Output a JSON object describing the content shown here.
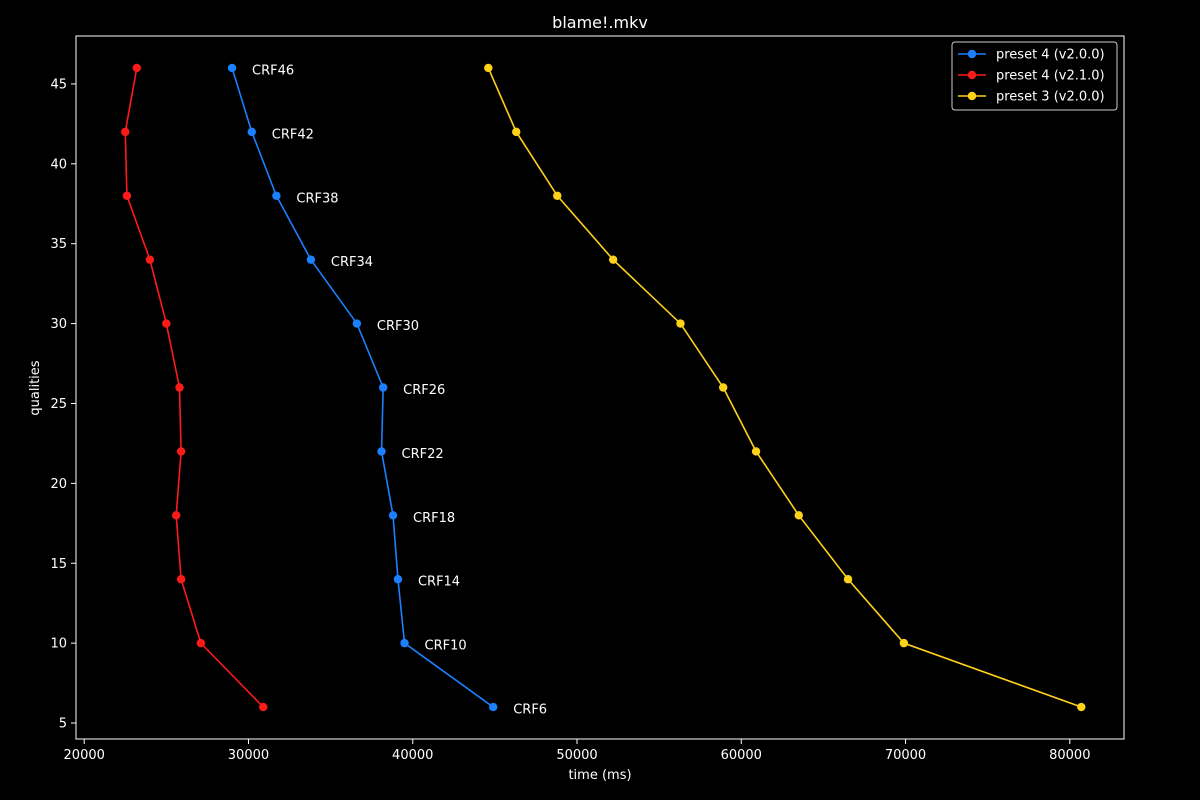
{
  "chart_data": {
    "type": "line",
    "title": "blame!.mkv",
    "xlabel": "time (ms)",
    "ylabel": "qualities",
    "xlim": [
      19500,
      83300
    ],
    "ylim": [
      4,
      48
    ],
    "xticks": [
      20000,
      30000,
      40000,
      50000,
      60000,
      70000,
      80000
    ],
    "yticks": [
      5,
      10,
      15,
      20,
      25,
      30,
      35,
      40,
      45
    ],
    "grid": false,
    "legend_position": "top-right",
    "series": [
      {
        "name": "preset 4 (v2.0.0)",
        "color": "#1a80ff",
        "points": [
          {
            "x": 29000,
            "y": 46
          },
          {
            "x": 30200,
            "y": 42
          },
          {
            "x": 31700,
            "y": 38
          },
          {
            "x": 33800,
            "y": 34
          },
          {
            "x": 36600,
            "y": 30
          },
          {
            "x": 38200,
            "y": 26
          },
          {
            "x": 38100,
            "y": 22
          },
          {
            "x": 38800,
            "y": 18
          },
          {
            "x": 39100,
            "y": 14
          },
          {
            "x": 39500,
            "y": 10
          },
          {
            "x": 44900,
            "y": 6
          }
        ]
      },
      {
        "name": "preset 4 (v2.1.0)",
        "color": "#ff1a1a",
        "points": [
          {
            "x": 23200,
            "y": 46
          },
          {
            "x": 22500,
            "y": 42
          },
          {
            "x": 22600,
            "y": 38
          },
          {
            "x": 24000,
            "y": 34
          },
          {
            "x": 25000,
            "y": 30
          },
          {
            "x": 25800,
            "y": 26
          },
          {
            "x": 25900,
            "y": 22
          },
          {
            "x": 25600,
            "y": 18
          },
          {
            "x": 25900,
            "y": 14
          },
          {
            "x": 27100,
            "y": 10
          },
          {
            "x": 30900,
            "y": 6
          }
        ]
      },
      {
        "name": "preset 3 (v2.0.0)",
        "color": "#ffd21a",
        "points": [
          {
            "x": 44600,
            "y": 46
          },
          {
            "x": 46300,
            "y": 42
          },
          {
            "x": 48800,
            "y": 38
          },
          {
            "x": 52200,
            "y": 34
          },
          {
            "x": 56300,
            "y": 30
          },
          {
            "x": 58900,
            "y": 26
          },
          {
            "x": 60900,
            "y": 22
          },
          {
            "x": 63500,
            "y": 18
          },
          {
            "x": 66500,
            "y": 14
          },
          {
            "x": 69900,
            "y": 10
          },
          {
            "x": 80700,
            "y": 6
          }
        ]
      }
    ],
    "annotations": [
      {
        "text": "CRF46",
        "series": 0,
        "point": 0
      },
      {
        "text": "CRF42",
        "series": 0,
        "point": 1
      },
      {
        "text": "CRF38",
        "series": 0,
        "point": 2
      },
      {
        "text": "CRF34",
        "series": 0,
        "point": 3
      },
      {
        "text": "CRF30",
        "series": 0,
        "point": 4
      },
      {
        "text": "CRF26",
        "series": 0,
        "point": 5
      },
      {
        "text": "CRF22",
        "series": 0,
        "point": 6
      },
      {
        "text": "CRF18",
        "series": 0,
        "point": 7
      },
      {
        "text": "CRF14",
        "series": 0,
        "point": 8
      },
      {
        "text": "CRF10",
        "series": 0,
        "point": 9
      },
      {
        "text": "CRF6",
        "series": 0,
        "point": 10
      }
    ]
  }
}
